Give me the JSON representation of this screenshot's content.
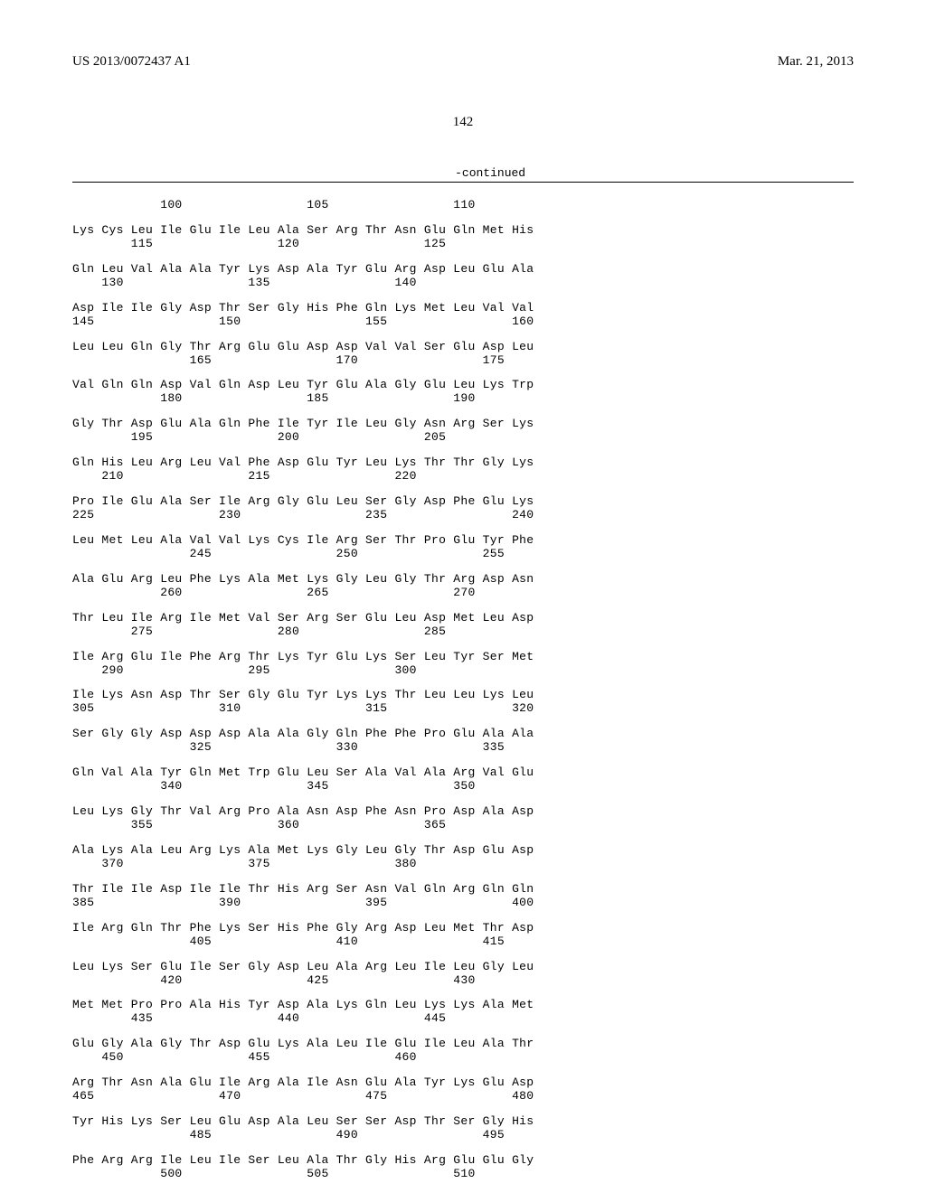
{
  "header": {
    "pub_number": "US 2013/0072437 A1",
    "pub_date": "Mar. 21, 2013"
  },
  "page_number": "142",
  "continued_label": "-continued",
  "sequence": {
    "font_family": "Courier New",
    "font_size_pt": 10,
    "color": "#000000",
    "rows": [
      {
        "nums": "            100                 105                 110"
      },
      {
        "seq": "Lys Cys Leu Ile Glu Ile Leu Ala Ser Arg Thr Asn Glu Gln Met His",
        "nums": "        115                 120                 125"
      },
      {
        "seq": "Gln Leu Val Ala Ala Tyr Lys Asp Ala Tyr Glu Arg Asp Leu Glu Ala",
        "nums": "    130                 135                 140"
      },
      {
        "seq": "Asp Ile Ile Gly Asp Thr Ser Gly His Phe Gln Lys Met Leu Val Val",
        "nums": "145                 150                 155                 160"
      },
      {
        "seq": "Leu Leu Gln Gly Thr Arg Glu Glu Asp Asp Val Val Ser Glu Asp Leu",
        "nums": "                165                 170                 175"
      },
      {
        "seq": "Val Gln Gln Asp Val Gln Asp Leu Tyr Glu Ala Gly Glu Leu Lys Trp",
        "nums": "            180                 185                 190"
      },
      {
        "seq": "Gly Thr Asp Glu Ala Gln Phe Ile Tyr Ile Leu Gly Asn Arg Ser Lys",
        "nums": "        195                 200                 205"
      },
      {
        "seq": "Gln His Leu Arg Leu Val Phe Asp Glu Tyr Leu Lys Thr Thr Gly Lys",
        "nums": "    210                 215                 220"
      },
      {
        "seq": "Pro Ile Glu Ala Ser Ile Arg Gly Glu Leu Ser Gly Asp Phe Glu Lys",
        "nums": "225                 230                 235                 240"
      },
      {
        "seq": "Leu Met Leu Ala Val Val Lys Cys Ile Arg Ser Thr Pro Glu Tyr Phe",
        "nums": "                245                 250                 255"
      },
      {
        "seq": "Ala Glu Arg Leu Phe Lys Ala Met Lys Gly Leu Gly Thr Arg Asp Asn",
        "nums": "            260                 265                 270"
      },
      {
        "seq": "Thr Leu Ile Arg Ile Met Val Ser Arg Ser Glu Leu Asp Met Leu Asp",
        "nums": "        275                 280                 285"
      },
      {
        "seq": "Ile Arg Glu Ile Phe Arg Thr Lys Tyr Glu Lys Ser Leu Tyr Ser Met",
        "nums": "    290                 295                 300"
      },
      {
        "seq": "Ile Lys Asn Asp Thr Ser Gly Glu Tyr Lys Lys Thr Leu Leu Lys Leu",
        "nums": "305                 310                 315                 320"
      },
      {
        "seq": "Ser Gly Gly Asp Asp Asp Ala Ala Gly Gln Phe Phe Pro Glu Ala Ala",
        "nums": "                325                 330                 335"
      },
      {
        "seq": "Gln Val Ala Tyr Gln Met Trp Glu Leu Ser Ala Val Ala Arg Val Glu",
        "nums": "            340                 345                 350"
      },
      {
        "seq": "Leu Lys Gly Thr Val Arg Pro Ala Asn Asp Phe Asn Pro Asp Ala Asp",
        "nums": "        355                 360                 365"
      },
      {
        "seq": "Ala Lys Ala Leu Arg Lys Ala Met Lys Gly Leu Gly Thr Asp Glu Asp",
        "nums": "    370                 375                 380"
      },
      {
        "seq": "Thr Ile Ile Asp Ile Ile Thr His Arg Ser Asn Val Gln Arg Gln Gln",
        "nums": "385                 390                 395                 400"
      },
      {
        "seq": "Ile Arg Gln Thr Phe Lys Ser His Phe Gly Arg Asp Leu Met Thr Asp",
        "nums": "                405                 410                 415"
      },
      {
        "seq": "Leu Lys Ser Glu Ile Ser Gly Asp Leu Ala Arg Leu Ile Leu Gly Leu",
        "nums": "            420                 425                 430"
      },
      {
        "seq": "Met Met Pro Pro Ala His Tyr Asp Ala Lys Gln Leu Lys Lys Ala Met",
        "nums": "        435                 440                 445"
      },
      {
        "seq": "Glu Gly Ala Gly Thr Asp Glu Lys Ala Leu Ile Glu Ile Leu Ala Thr",
        "nums": "    450                 455                 460"
      },
      {
        "seq": "Arg Thr Asn Ala Glu Ile Arg Ala Ile Asn Glu Ala Tyr Lys Glu Asp",
        "nums": "465                 470                 475                 480"
      },
      {
        "seq": "Tyr His Lys Ser Leu Glu Asp Ala Leu Ser Ser Asp Thr Ser Gly His",
        "nums": "                485                 490                 495"
      },
      {
        "seq": "Phe Arg Arg Ile Leu Ile Ser Leu Ala Thr Gly His Arg Glu Glu Gly",
        "nums": "            500                 505                 510"
      }
    ]
  }
}
